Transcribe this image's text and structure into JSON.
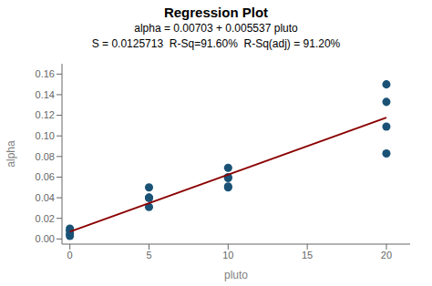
{
  "chart_data": {
    "type": "scatter",
    "title": "Regression Plot",
    "subtitle": [
      "alpha = 0.00703 + 0.005537 pluto",
      "S = 0.0125713  R-Sq=91.60%  R-Sq(adj) = 91.20%"
    ],
    "x_label": "pluto",
    "y_label": "alpha",
    "xlim": [
      -0.5,
      21.5
    ],
    "ylim": [
      -0.005,
      0.17
    ],
    "xticks": [
      0,
      5,
      10,
      15,
      20
    ],
    "yticks": [
      {
        "value": 0,
        "label": "0.00"
      },
      0.02,
      0.04,
      0.06,
      0.08,
      {
        "value": 0.1,
        "label": "0.10"
      },
      0.12,
      0.14,
      0.16
    ],
    "grid": false,
    "series": [
      {
        "type": "scatter",
        "color": "#1a5276",
        "x": [
          0,
          0,
          0,
          0,
          5,
          5,
          5,
          5,
          5,
          10,
          10,
          10,
          10,
          10,
          20,
          20,
          20,
          20
        ],
        "values": [
          0.005,
          0.01,
          0.008,
          0.003,
          0.05,
          0.04,
          0.04,
          0.04,
          0.031,
          0.069,
          0.059,
          0.05,
          0.06,
          0.051,
          0.15,
          0.133,
          0.109,
          0.083
        ]
      },
      {
        "type": "line",
        "color": "#8B0000",
        "x": [
          0,
          20
        ],
        "values": [
          0.00703,
          0.11777
        ]
      }
    ]
  }
}
